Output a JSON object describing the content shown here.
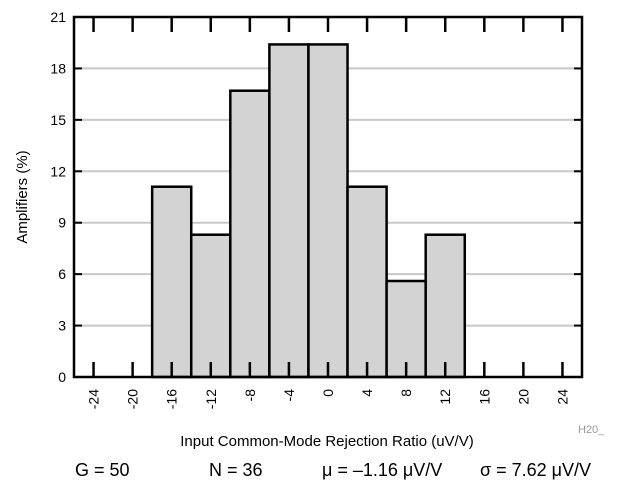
{
  "chart_data": {
    "type": "bar",
    "subtype": "histogram",
    "xlabel": "Input Common-Mode Rejection Ratio (uV/V)",
    "ylabel": "Amplifiers (%)",
    "xlim": [
      -26,
      26
    ],
    "ylim": [
      0,
      21
    ],
    "xticks": [
      -24,
      -20,
      -16,
      -12,
      -8,
      -4,
      0,
      4,
      8,
      12,
      16,
      20,
      24
    ],
    "yticks": [
      0,
      3,
      6,
      9,
      12,
      15,
      18,
      21
    ],
    "bin_width": 4,
    "bins": [
      {
        "start": -18,
        "end": -14,
        "value": 11.1
      },
      {
        "start": -14,
        "end": -10,
        "value": 8.3
      },
      {
        "start": -10,
        "end": -6,
        "value": 16.7
      },
      {
        "start": -6,
        "end": -2,
        "value": 19.4
      },
      {
        "start": -2,
        "end": 2,
        "value": 19.4
      },
      {
        "start": 2,
        "end": 6,
        "value": 11.1
      },
      {
        "start": 6,
        "end": 10,
        "value": 5.6
      },
      {
        "start": 10,
        "end": 14,
        "value": 8.3
      }
    ],
    "bar_color": "#d3d3d3",
    "grid": "horizontal",
    "annotation": "H20_"
  },
  "stats": {
    "gain": "G = 50",
    "count": "N = 36",
    "mean": "μ = –1.16 μV/V",
    "sigma": "σ = 7.62 μV/V"
  }
}
